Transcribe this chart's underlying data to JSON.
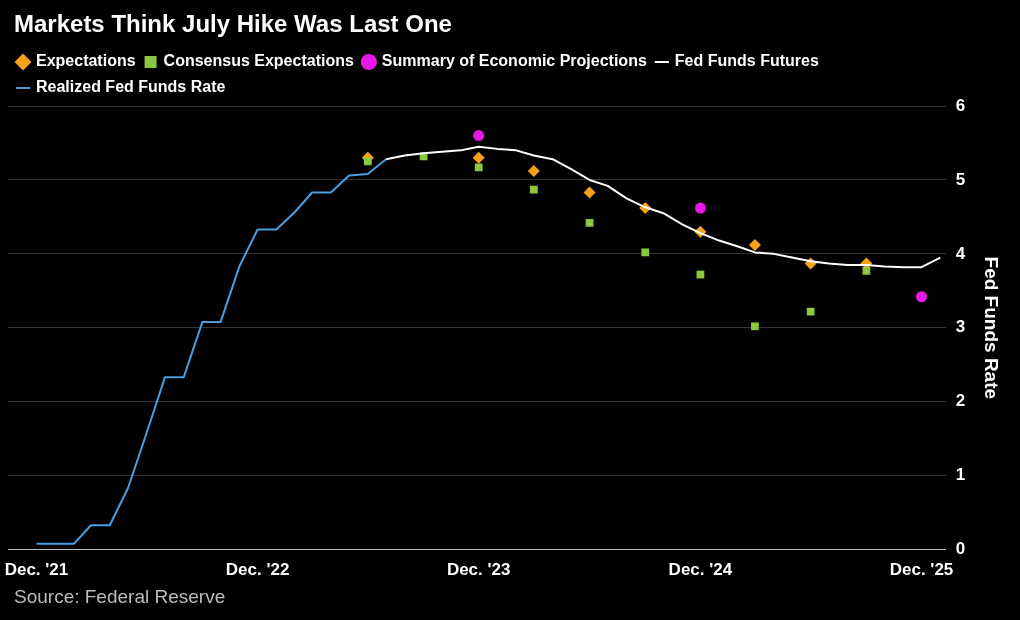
{
  "chart_data": {
    "type": "line",
    "title": "Markets Think July Hike Was Last One",
    "ylabel": "Fed Funds Rate",
    "annotations": [
      "Source: Federal Reserve"
    ],
    "xlim": [
      "2021-10-15",
      "2026-01-10"
    ],
    "xticks": [
      {
        "value": "2021-12",
        "label": "Dec. '21"
      },
      {
        "value": "2022-12",
        "label": "Dec. '22"
      },
      {
        "value": "2023-12",
        "label": "Dec. '23"
      },
      {
        "value": "2024-12",
        "label": "Dec. '24"
      },
      {
        "value": "2025-12",
        "label": "Dec. '25"
      }
    ],
    "ylim": [
      0,
      6
    ],
    "yticks": [
      0,
      1,
      2,
      3,
      4,
      5,
      6
    ],
    "grid": "y",
    "legend": "top left",
    "series": [
      {
        "name": "Expectations",
        "type": "scatter",
        "marker": "diamond",
        "color": "#f7a21b",
        "x": [
          "2023-06",
          "2023-12",
          "2024-03",
          "2024-06",
          "2024-09",
          "2024-12",
          "2025-03",
          "2025-06",
          "2025-09"
        ],
        "values": [
          5.3,
          5.3,
          5.12,
          4.83,
          4.62,
          4.3,
          4.12,
          3.87,
          3.87
        ]
      },
      {
        "name": "Consensus Expectations",
        "type": "scatter",
        "marker": "square",
        "color": "#8dc63f",
        "x": [
          "2023-06",
          "2023-09",
          "2023-12",
          "2024-03",
          "2024-06",
          "2024-09",
          "2024-12",
          "2025-03",
          "2025-06",
          "2025-09"
        ],
        "values": [
          5.25,
          5.32,
          5.17,
          4.87,
          4.42,
          4.02,
          3.72,
          3.02,
          3.22,
          3.77
        ]
      },
      {
        "name": "Summary of Economic Projections",
        "type": "scatter",
        "marker": "circle",
        "color": "#e619e6",
        "x": [
          "2023-12",
          "2024-12",
          "2025-12"
        ],
        "values": [
          5.6,
          4.62,
          3.42
        ]
      },
      {
        "name": "Fed Funds Futures",
        "type": "line",
        "marker": "none",
        "color": "#ffffff",
        "x": [
          "2023-07",
          "2023-08",
          "2023-09",
          "2023-10",
          "2023-11",
          "2023-12",
          "2024-01",
          "2024-02",
          "2024-03",
          "2024-04",
          "2024-05",
          "2024-06",
          "2024-07",
          "2024-08",
          "2024-09",
          "2024-10",
          "2024-11",
          "2024-12",
          "2025-01",
          "2025-02",
          "2025-03",
          "2025-04",
          "2025-05",
          "2025-06",
          "2025-07",
          "2025-08",
          "2025-09",
          "2025-10",
          "2025-11",
          "2025-12",
          "2026-01"
        ],
        "values": [
          5.28,
          5.33,
          5.36,
          5.38,
          5.4,
          5.45,
          5.42,
          5.4,
          5.33,
          5.28,
          5.15,
          5.0,
          4.92,
          4.75,
          4.63,
          4.55,
          4.4,
          4.28,
          4.18,
          4.1,
          4.02,
          4.0,
          3.95,
          3.9,
          3.87,
          3.85,
          3.85,
          3.83,
          3.82,
          3.82,
          3.95
        ]
      },
      {
        "name": "Realized Fed Funds Rate",
        "type": "line",
        "marker": "none",
        "color": "#4a9ee0",
        "x": [
          "2021-12",
          "2022-01",
          "2022-02",
          "2022-03",
          "2022-04",
          "2022-05",
          "2022-06",
          "2022-07",
          "2022-08",
          "2022-09",
          "2022-10",
          "2022-11",
          "2022-12",
          "2023-01",
          "2023-02",
          "2023-03",
          "2023-04",
          "2023-05",
          "2023-06",
          "2023-07"
        ],
        "values": [
          0.08,
          0.08,
          0.08,
          0.33,
          0.33,
          0.83,
          1.58,
          2.33,
          2.33,
          3.08,
          3.08,
          3.83,
          4.33,
          4.33,
          4.57,
          4.83,
          4.83,
          5.06,
          5.08,
          5.28
        ]
      }
    ]
  }
}
